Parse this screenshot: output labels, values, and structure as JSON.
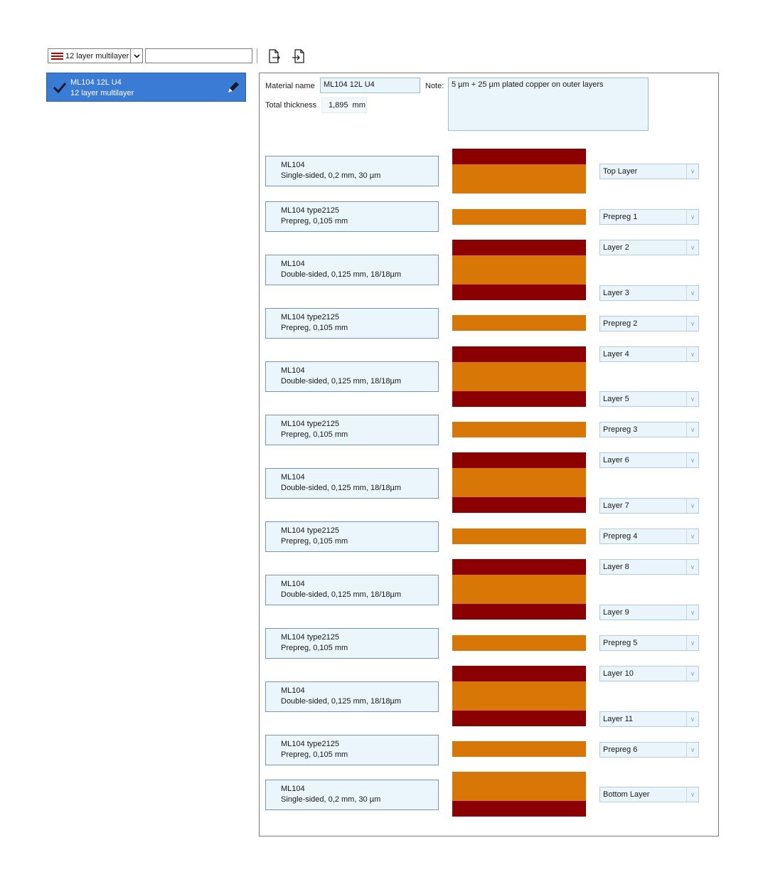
{
  "toolbar": {
    "type_label": "12 layer multilayer",
    "search_value": "",
    "export_icon": "export-file-icon",
    "import_icon": "import-file-icon"
  },
  "list": {
    "item": {
      "name": "ML104 12L U4",
      "subtitle": "12 layer multilayer",
      "status_icon": "check-icon",
      "edit_icon": "pencil-icon"
    }
  },
  "form": {
    "material_name_label": "Material name",
    "material_name_value": "ML104 12L U4",
    "total_thickness_label": "Total thickness",
    "total_thickness_value": "1,895",
    "total_thickness_unit": "mm",
    "note_label": "Note:",
    "note_value": "5 µm + 25 µm plated copper on outer layers"
  },
  "colors": {
    "copper": "#8b0000",
    "dielectric": "#d97706",
    "selection": "#3a7bd5"
  },
  "layers": [
    {
      "line1": "ML104",
      "line2": "Single-sided, 0,2 mm, 30 µm"
    },
    {
      "line1": "ML104 type2125",
      "line2": "Prepreg, 0,105 mm"
    },
    {
      "line1": "ML104",
      "line2": "Double-sided, 0,125 mm, 18/18µm"
    },
    {
      "line1": "ML104 type2125",
      "line2": "Prepreg, 0,105 mm"
    },
    {
      "line1": "ML104",
      "line2": "Double-sided, 0,125 mm, 18/18µm"
    },
    {
      "line1": "ML104 type2125",
      "line2": "Prepreg, 0,105 mm"
    },
    {
      "line1": "ML104",
      "line2": "Double-sided, 0,125 mm, 18/18µm"
    },
    {
      "line1": "ML104 type2125",
      "line2": "Prepreg, 0,105 mm"
    },
    {
      "line1": "ML104",
      "line2": "Double-sided, 0,125 mm, 18/18µm"
    },
    {
      "line1": "ML104 type2125",
      "line2": "Prepreg, 0,105 mm"
    },
    {
      "line1": "ML104",
      "line2": "Double-sided, 0,125 mm, 18/18µm"
    },
    {
      "line1": "ML104 type2125",
      "line2": "Prepreg, 0,105 mm"
    },
    {
      "line1": "ML104",
      "line2": "Single-sided, 0,2 mm, 30 µm"
    }
  ],
  "layer_names": [
    "Top Layer",
    "Prepreg 1",
    "Layer 2",
    "Layer 3",
    "Prepreg 2",
    "Layer 4",
    "Layer 5",
    "Prepreg 3",
    "Layer 6",
    "Layer 7",
    "Prepreg 4",
    "Layer 8",
    "Layer 9",
    "Prepreg 5",
    "Layer 10",
    "Layer 11",
    "Prepreg 6",
    "Bottom Layer"
  ]
}
